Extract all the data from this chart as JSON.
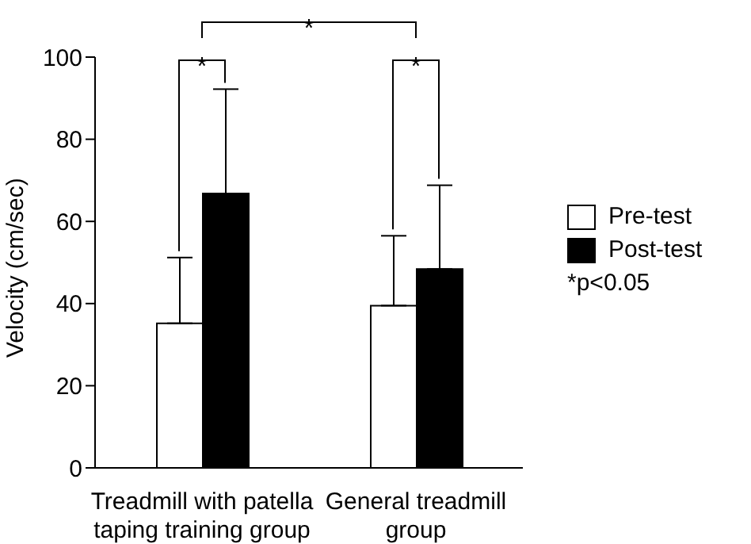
{
  "chart_data": {
    "type": "bar",
    "ylabel": "Velocity (cm/sec)",
    "categories": [
      "Treadmill with patella taping training group",
      "General treadmill group"
    ],
    "series": [
      {
        "name": "Pre-test",
        "color": "#ffffff",
        "values": [
          35.2,
          39.5
        ],
        "errors": [
          [
            35.2,
            51.2
          ],
          [
            39.5,
            56.5
          ]
        ]
      },
      {
        "name": "Post-test",
        "color": "#000000",
        "values": [
          66.8,
          48.4
        ],
        "errors": [
          [
            66.8,
            92.2
          ],
          [
            48.4,
            68.8
          ]
        ]
      }
    ],
    "ylim": [
      0,
      100
    ],
    "yticks": [
      0,
      20,
      40,
      60,
      80,
      100
    ],
    "grid": false,
    "legend": "right",
    "annotations": [
      "*",
      "*",
      "*",
      "*p<0.05"
    ]
  }
}
